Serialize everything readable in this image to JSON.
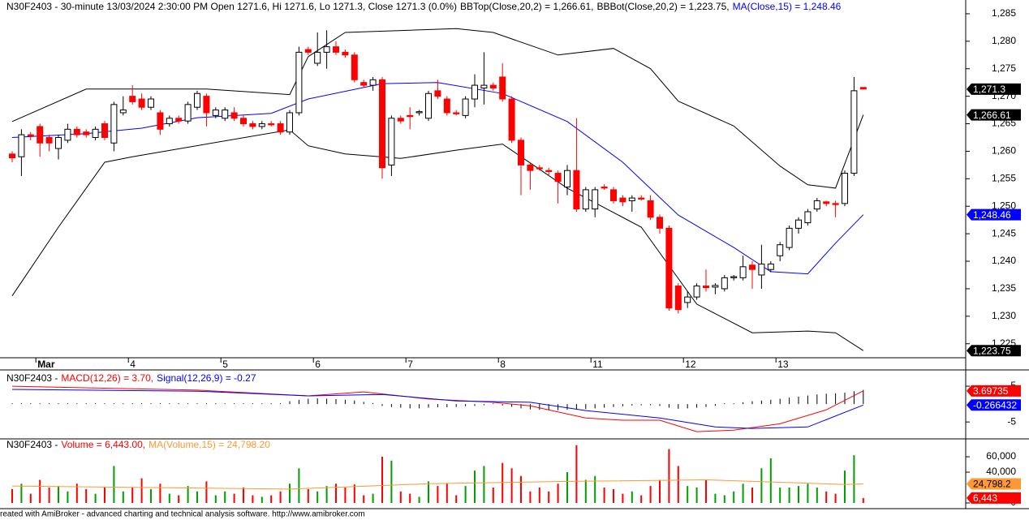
{
  "chart_data": [
    {
      "type": "candlestick",
      "title": "N30F2403 - 30-minute 13/03/2024 2:30:00 PM Open 1271.6, Hi 1271.6, Lo 1271.3, Close 1271.3 (0.0%)",
      "categories": [
        null,
        null,
        null,
        "Mar",
        null,
        null,
        null,
        null,
        null,
        null,
        null,
        null,
        null,
        "4",
        null,
        null,
        null,
        null,
        null,
        null,
        null,
        null,
        null,
        "5",
        null,
        null,
        null,
        null,
        null,
        null,
        null,
        null,
        null,
        "6",
        null,
        null,
        null,
        null,
        null,
        null,
        null,
        null,
        null,
        "7",
        null,
        null,
        null,
        null,
        null,
        null,
        null,
        null,
        null,
        "8",
        null,
        null,
        null,
        null,
        null,
        null,
        null,
        null,
        null,
        "11",
        null,
        null,
        null,
        null,
        null,
        null,
        null,
        null,
        null,
        "12",
        null,
        null,
        null,
        null,
        null,
        null,
        null,
        null,
        null,
        "13",
        null,
        null,
        null,
        null,
        null,
        null,
        null,
        null,
        null
      ],
      "open": [
        1259.5,
        1259,
        1263,
        1264.5,
        1262.5,
        1260.5,
        1262,
        1264,
        1263.5,
        1262.5,
        1265,
        1261.5,
        1267,
        1270,
        1269.5,
        1268,
        1267,
        1265,
        1266,
        1265.5,
        1268,
        1270,
        1266.5,
        1266,
        1267,
        1266,
        1265,
        1264.5,
        1265,
        1265,
        1263.5,
        1267,
        1278.5,
        1276,
        1278,
        1279,
        1278,
        1277.5,
        1272.5,
        1272,
        1273,
        1257.5,
        1266,
        1266.5,
        1267,
        1266,
        1271,
        1269.5,
        1267,
        1266.5,
        1269.5,
        1271.5,
        1272,
        1273.5,
        1269.5,
        1262,
        1257.5,
        1257,
        1256.5,
        1256,
        1253.5,
        1256.5,
        1249.5,
        1249.5,
        1253.5,
        1253,
        1251.5,
        1251,
        1251.5,
        1251,
        1248,
        1246,
        1235.5,
        1232.5,
        1233.5,
        1235.5,
        1235.3,
        1235,
        1237,
        1237,
        1239.3,
        1237.5,
        1238.5,
        1241,
        1242.5,
        1246,
        1247,
        1249.5,
        1250.8,
        1250.5,
        1250.5,
        1256,
        1271.6
      ],
      "high": [
        1260,
        1264,
        1263.5,
        1265,
        1263,
        1263,
        1265,
        1264.5,
        1264,
        1264.5,
        1265.5,
        1269,
        1270,
        1272,
        1270.5,
        1270,
        1267.5,
        1266.5,
        1266.5,
        1269,
        1271,
        1270.5,
        1268,
        1268,
        1268,
        1266.5,
        1265.5,
        1265.5,
        1265.5,
        1265.5,
        1267.5,
        1279,
        1279,
        1281.6,
        1282,
        1280,
        1278.5,
        1278,
        1273,
        1273.5,
        1273.5,
        1266.5,
        1266.5,
        1268,
        1267.5,
        1271,
        1273,
        1270,
        1267.5,
        1270,
        1274,
        1278,
        1272.5,
        1276,
        1270,
        1262.5,
        1258,
        1257.5,
        1257,
        1256.5,
        1257.5,
        1266,
        1253.5,
        1253.5,
        1254,
        1253.5,
        1252,
        1252,
        1252,
        1252,
        1248.5,
        1246.5,
        1236,
        1234.5,
        1236,
        1238.5,
        1236,
        1237.5,
        1237.5,
        1241,
        1240,
        1243,
        1240,
        1243.5,
        1246.5,
        1248,
        1249.5,
        1251.5,
        1251,
        1251,
        1256.5,
        1273.5,
        1271.6
      ],
      "low": [
        1258,
        1255.5,
        1262,
        1259,
        1260,
        1258.5,
        1261.5,
        1262.5,
        1262.5,
        1262,
        1262,
        1260,
        1266.5,
        1268.5,
        1267.5,
        1267.5,
        1263,
        1264.5,
        1265,
        1265,
        1267.5,
        1264.5,
        1266,
        1265.5,
        1265.5,
        1264.5,
        1264,
        1264,
        1264.5,
        1263,
        1263,
        1266.5,
        1277.5,
        1275.5,
        1275,
        1277.5,
        1277,
        1272.5,
        1271.5,
        1271,
        1255,
        1255.5,
        1265,
        1264,
        1266.5,
        1265.5,
        1269.5,
        1266.5,
        1266.5,
        1266,
        1268,
        1268.5,
        1271,
        1269,
        1261.5,
        1252,
        1253,
        1256.5,
        1255.5,
        1250.5,
        1252,
        1249,
        1249,
        1248,
        1253,
        1250.5,
        1250,
        1249,
        1251,
        1247.5,
        1245,
        1231,
        1230.5,
        1231.5,
        1233,
        1234.5,
        1234,
        1234.5,
        1236.5,
        1236.5,
        1235,
        1235,
        1238,
        1240,
        1242,
        1245,
        1246.5,
        1249,
        1250,
        1248,
        1250,
        1255.5,
        1271.3
      ],
      "close": [
        1258.8,
        1263,
        1262.8,
        1261.5,
        1261.5,
        1262.5,
        1264,
        1263,
        1263,
        1264,
        1262.5,
        1268.5,
        1267.5,
        1269,
        1268,
        1269.5,
        1264,
        1266,
        1265.5,
        1268.5,
        1270.5,
        1267,
        1267.5,
        1267.5,
        1266,
        1265,
        1264.5,
        1265,
        1264.8,
        1263.5,
        1267,
        1278,
        1278,
        1278,
        1279,
        1278,
        1277.5,
        1273,
        1272,
        1273,
        1257,
        1266,
        1265.5,
        1266.3,
        1267.2,
        1270.5,
        1270,
        1267,
        1266.8,
        1269.5,
        1272,
        1272,
        1271.5,
        1269.5,
        1262,
        1257.5,
        1256.5,
        1256.8,
        1256.3,
        1254.5,
        1256.5,
        1249.5,
        1253,
        1253,
        1253.3,
        1251,
        1250.8,
        1251.5,
        1251.3,
        1248,
        1246,
        1231.5,
        1231.2,
        1233.5,
        1235.5,
        1235.2,
        1235.6,
        1237,
        1237.2,
        1239,
        1238.5,
        1239.5,
        1239.5,
        1243,
        1246,
        1247.5,
        1249,
        1251,
        1250.5,
        1250.3,
        1256,
        1271,
        1271.3
      ],
      "up_color": "#ffffff",
      "down_color": "#ff0000",
      "close_label": "1,271.3",
      "close_tag_color": "#000000",
      "series": [
        {
          "name": "BBTop(Close,20,2) = 1,266.61,",
          "color": "#000000",
          "x": [
            0,
            8,
            21,
            30,
            32,
            36,
            48,
            52,
            59,
            65,
            69,
            72,
            78,
            83,
            86,
            89,
            92
          ],
          "values": [
            1265.4,
            1271.3,
            1271.3,
            1270.3,
            1277.2,
            1281.6,
            1282.3,
            1281.6,
            1277.5,
            1278.7,
            1275,
            1269.1,
            1264.6,
            1257.3,
            1253.9,
            1253.3,
            1266.61
          ],
          "last_label": "1,266.61"
        },
        {
          "name": "BBBot(Close,20,2) = 1,223.75,",
          "color": "#000000",
          "x": [
            0,
            5,
            10,
            13,
            30,
            32,
            36,
            42,
            48,
            53,
            60,
            68,
            74,
            80,
            86,
            89,
            92
          ],
          "values": [
            1233.7,
            1246.2,
            1258,
            1259,
            1263.9,
            1261,
            1259.5,
            1258.7,
            1260.2,
            1261.3,
            1253.3,
            1246.2,
            1232.2,
            1227,
            1227.3,
            1227,
            1223.75
          ],
          "last_label": "1,223.75"
        },
        {
          "name": "MA(Close,15) = 1,248.46",
          "color": "#0000ff",
          "x": [
            0,
            8,
            14,
            20,
            28,
            32,
            40,
            46,
            53,
            60,
            66,
            72,
            78,
            82,
            86,
            89,
            92
          ],
          "values": [
            1262.5,
            1263.2,
            1264.2,
            1266.1,
            1266.9,
            1269.5,
            1272.3,
            1272.5,
            1270.5,
            1265.4,
            1258,
            1248.4,
            1242.5,
            1238.1,
            1237.7,
            1243.3,
            1248.46
          ],
          "last_label": "1,248.46"
        }
      ],
      "ylim": [
        1222.6,
        1287.5
      ],
      "yticks": [
        {
          "value": 1225,
          "label": "1,225"
        },
        {
          "value": 1230,
          "label": "1,230"
        },
        {
          "value": 1235,
          "label": "1,235"
        },
        {
          "value": 1240,
          "label": "1,240"
        },
        {
          "value": 1245,
          "label": "1,245"
        },
        {
          "value": 1250,
          "label": "1,250"
        },
        {
          "value": 1255,
          "label": "1,255"
        },
        {
          "value": 1260,
          "label": "1,260"
        },
        {
          "value": 1265,
          "label": "1,265"
        },
        {
          "value": 1270,
          "label": "1,270"
        },
        {
          "value": 1275,
          "label": "1,275"
        },
        {
          "value": 1280,
          "label": "1,280"
        },
        {
          "value": 1285,
          "label": "1,285"
        }
      ]
    },
    {
      "type": "line",
      "title": "N30F2403 -",
      "series": [
        {
          "name": "MACD(12,26) = 3.70,",
          "color": "#ff0000",
          "x": [
            0,
            20,
            32,
            38,
            45,
            52,
            56,
            62,
            66,
            70,
            74,
            78,
            83,
            88,
            92
          ],
          "values": [
            5,
            3.9,
            2.3,
            3.4,
            1.4,
            0.5,
            -0.5,
            -3.9,
            -4.5,
            -4.5,
            -7.7,
            -7.3,
            -5.5,
            -1.6,
            3.69735
          ],
          "last_label": "3.69735"
        },
        {
          "name": "Signal(12,26,9) = -0.27",
          "color": "#0000ff",
          "x": [
            0,
            20,
            32,
            40,
            48,
            56,
            62,
            70,
            76,
            80,
            86,
            92
          ],
          "values": [
            4.1,
            3.6,
            2.3,
            2.7,
            0.9,
            0.5,
            -1.8,
            -3.9,
            -6.4,
            -6.8,
            -6.4,
            -0.266432
          ],
          "last_label": "-0.266432"
        }
      ],
      "histogram": {
        "color": "#000000",
        "values": [
          0.2,
          0.2,
          0.2,
          0.2,
          0.2,
          0.2,
          0.2,
          0.2,
          0.2,
          0.2,
          0.2,
          0.2,
          0.2,
          0.2,
          0.2,
          0.2,
          0.2,
          0.2,
          0.2,
          0.2,
          0.2,
          0.2,
          0.2,
          0.2,
          0.2,
          0.2,
          0.2,
          0.2,
          0.2,
          0.2,
          0.8,
          1.2,
          1.5,
          1.6,
          1.5,
          1.4,
          1.2,
          1,
          0.6,
          0.3,
          -0.5,
          -0.8,
          -1,
          -1.2,
          -1.2,
          -1,
          -0.9,
          -0.9,
          -0.8,
          -0.6,
          -0.5,
          -0.3,
          -0.2,
          -0.4,
          -0.8,
          -1.2,
          -1.5,
          -1.6,
          -1.7,
          -1.7,
          -1.6,
          -1.5,
          -1.4,
          -1.2,
          -1,
          -0.8,
          -0.6,
          -0.4,
          -0.3,
          -0.3,
          -0.5,
          -1,
          -1.3,
          -1.2,
          -1,
          -0.8,
          -0.5,
          -0.2,
          0.2,
          0.5,
          0.8,
          1,
          1.2,
          1.5,
          1.8,
          2.1,
          2.4,
          2.7,
          2.9,
          3,
          3.2,
          3.6,
          3.97
        ]
      },
      "ylim": [
        -9.5,
        9.1
      ],
      "yticks": [
        -5,
        5
      ]
    },
    {
      "type": "bar",
      "title": "N30F2403 -",
      "values": [
        18000,
        25000,
        12000,
        30000,
        20000,
        22000,
        15000,
        25000,
        18000,
        12000,
        20000,
        48000,
        15000,
        20000,
        32000,
        18000,
        25000,
        12000,
        10000,
        22000,
        15000,
        28000,
        10000,
        15000,
        12000,
        20000,
        10000,
        8000,
        10000,
        15000,
        25000,
        45000,
        18000,
        15000,
        22000,
        25000,
        20000,
        24000,
        10000,
        12000,
        60000,
        55000,
        15000,
        12000,
        8000,
        28000,
        22000,
        25000,
        10000,
        22000,
        42000,
        48000,
        20000,
        52000,
        45000,
        35000,
        15000,
        20000,
        15000,
        25000,
        40000,
        75000,
        30000,
        35000,
        20000,
        18000,
        12000,
        15000,
        10000,
        22000,
        30000,
        70000,
        48000,
        22000,
        20000,
        30000,
        12000,
        10000,
        15000,
        25000,
        20000,
        45000,
        58000,
        20000,
        20000,
        22000,
        25000,
        20000,
        15000,
        12000,
        42000,
        62000,
        6443
      ],
      "name": "Volume = 6,443.00,",
      "color": "#ff0000",
      "up_color": "#00a000",
      "last_label": "6,443",
      "series": [
        {
          "name": "MA(Volume,15) = 24,798.20",
          "color": "#ff9933",
          "x": [
            0,
            15,
            30,
            45,
            60,
            75,
            90,
            92
          ],
          "values": [
            22000,
            20000,
            18000,
            25000,
            28000,
            30000,
            24000,
            24798.2
          ],
          "last_label": "24,798.2"
        }
      ],
      "ylim": [
        0,
        79000
      ],
      "yticks": [
        0,
        {
          "value": 40000,
          "label": "40,000"
        },
        {
          "value": 60000,
          "label": "60,000"
        }
      ]
    }
  ],
  "footer": "reated with AmiBroker - advanced charting and technical analysis software. http://www.amibroker.com"
}
